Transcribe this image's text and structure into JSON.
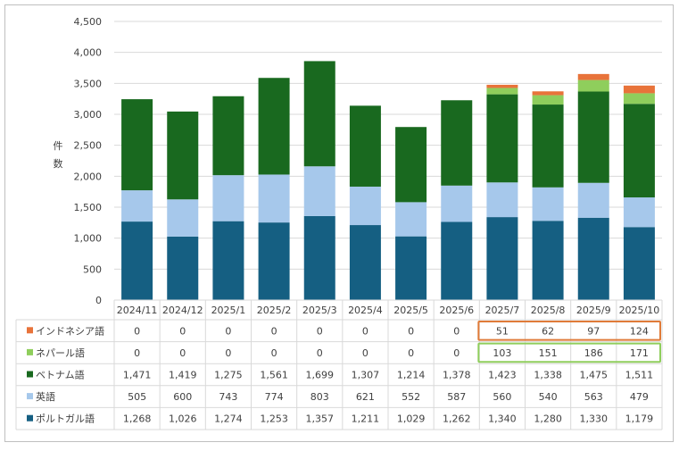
{
  "colors": {
    "portuguese": "#155f82",
    "english": "#a6c8eb",
    "vietnamese": "#19691f",
    "nepali": "#8fce5c",
    "indonesian": "#e8733a",
    "highlight_orange": "#e07b39",
    "highlight_green": "#8fce5c",
    "grid": "#d9d9d9",
    "frame": "#bfbfbf",
    "text": "#404040"
  },
  "chart_data": {
    "type": "bar",
    "stacked": true,
    "title": "",
    "xlabel": "",
    "ylabel": "件数",
    "ylabel_chars": [
      "件",
      "数"
    ],
    "ylim": [
      0,
      4500
    ],
    "yticks": [
      0,
      500,
      1000,
      1500,
      2000,
      2500,
      3000,
      3500,
      4000,
      4500
    ],
    "ytick_labels": [
      "0",
      "500",
      "1,000",
      "1,500",
      "2,000",
      "2,500",
      "3,000",
      "3,500",
      "4,000",
      "4,500"
    ],
    "grid": true,
    "categories": [
      "2024/11",
      "2024/12",
      "2025/1",
      "2025/2",
      "2025/3",
      "2025/4",
      "2025/5",
      "2025/6",
      "2025/7",
      "2025/8",
      "2025/9",
      "2025/10"
    ],
    "series": [
      {
        "name": "ポルトガル語",
        "key": "portuguese",
        "values": [
          1268,
          1026,
          1274,
          1253,
          1357,
          1211,
          1029,
          1262,
          1340,
          1280,
          1330,
          1179
        ]
      },
      {
        "name": "英語",
        "key": "english",
        "values": [
          505,
          600,
          743,
          774,
          803,
          621,
          552,
          587,
          560,
          540,
          563,
          479
        ]
      },
      {
        "name": "ベトナム語",
        "key": "vietnamese",
        "values": [
          1471,
          1419,
          1275,
          1561,
          1699,
          1307,
          1214,
          1378,
          1423,
          1338,
          1475,
          1511
        ]
      },
      {
        "name": "ネパール語",
        "key": "nepali",
        "values": [
          0,
          0,
          0,
          0,
          0,
          0,
          0,
          0,
          103,
          151,
          186,
          171
        ]
      },
      {
        "name": "インドネシア語",
        "key": "indonesian",
        "values": [
          0,
          0,
          0,
          0,
          0,
          0,
          0,
          0,
          51,
          62,
          97,
          124
        ]
      }
    ],
    "table_rows": [
      {
        "name": "インドネシア語",
        "key": "indonesian",
        "cells": [
          "0",
          "0",
          "0",
          "0",
          "0",
          "0",
          "0",
          "0",
          "51",
          "62",
          "97",
          "124"
        ]
      },
      {
        "name": "ネパール語",
        "key": "nepali",
        "cells": [
          "0",
          "0",
          "0",
          "0",
          "0",
          "0",
          "0",
          "0",
          "103",
          "151",
          "186",
          "171"
        ]
      },
      {
        "name": "ベトナム語",
        "key": "vietnamese",
        "cells": [
          "1,471",
          "1,419",
          "1,275",
          "1,561",
          "1,699",
          "1,307",
          "1,214",
          "1,378",
          "1,423",
          "1,338",
          "1,475",
          "1,511"
        ]
      },
      {
        "name": "英語",
        "key": "english",
        "cells": [
          "505",
          "600",
          "743",
          "774",
          "803",
          "621",
          "552",
          "587",
          "560",
          "540",
          "563",
          "479"
        ]
      },
      {
        "name": "ポルトガル語",
        "key": "portuguese",
        "cells": [
          "1,268",
          "1,026",
          "1,274",
          "1,253",
          "1,357",
          "1,211",
          "1,029",
          "1,262",
          "1,340",
          "1,280",
          "1,330",
          "1,179"
        ]
      }
    ],
    "highlights": [
      {
        "series": "インドネシア語",
        "from": "2025/7",
        "to": "2025/10",
        "color_key": "highlight_orange"
      },
      {
        "series": "ネパール語",
        "from": "2025/7",
        "to": "2025/10",
        "color_key": "highlight_green"
      }
    ]
  }
}
